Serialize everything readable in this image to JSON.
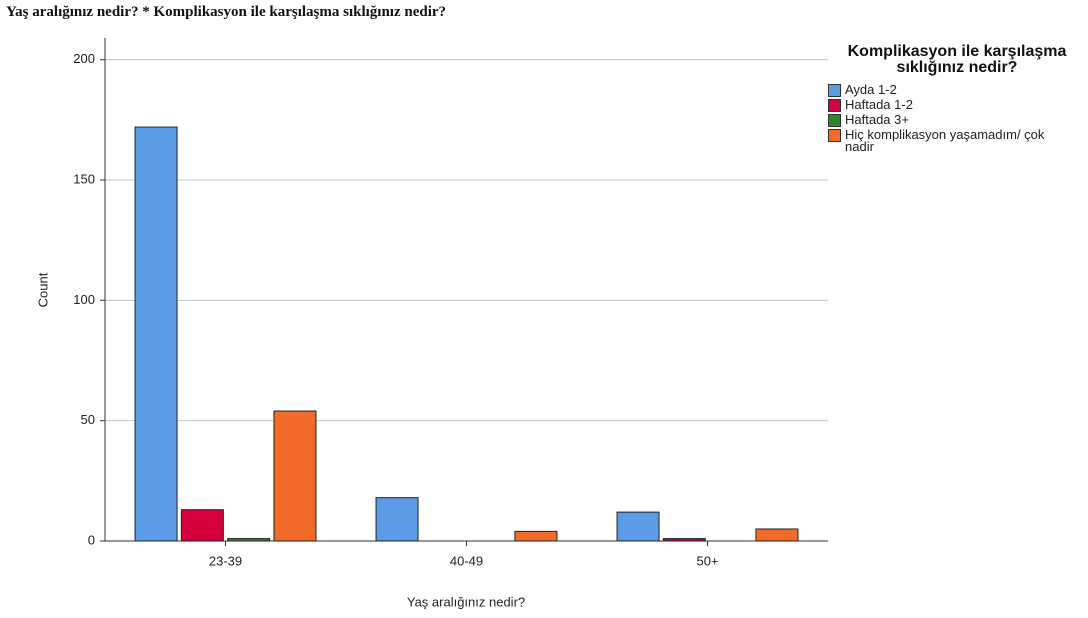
{
  "chart_data": {
    "type": "bar",
    "title": "Yaş aralığınız nedir? * Komplikasyon ile karşılaşma sıklığınız nedir?",
    "x_label": "Yaş aralığınız nedir?",
    "y_label": "Count",
    "legend_title": "Komplikasyon ile karşılaşma sıklığınız nedir?",
    "legend_position": "right",
    "categories": [
      "23-39",
      "40-49",
      "50+"
    ],
    "series": [
      {
        "name": "Ayda 1-2",
        "color": "#5b9be6",
        "values": [
          172,
          18,
          12
        ]
      },
      {
        "name": "Haftada 1-2",
        "color": "#d5003b",
        "values": [
          13,
          0,
          1
        ]
      },
      {
        "name": "Haftada 3+",
        "color": "#2a8a2a",
        "values": [
          1,
          0,
          0
        ]
      },
      {
        "name": "Hiç komplikasyon yaşamadım/ çok nadir",
        "color": "#f26b2b",
        "values": [
          54,
          4,
          5
        ]
      }
    ],
    "ylim": [
      0,
      209
    ],
    "yticks": [
      0,
      50,
      100,
      150,
      200
    ],
    "grid": true
  }
}
